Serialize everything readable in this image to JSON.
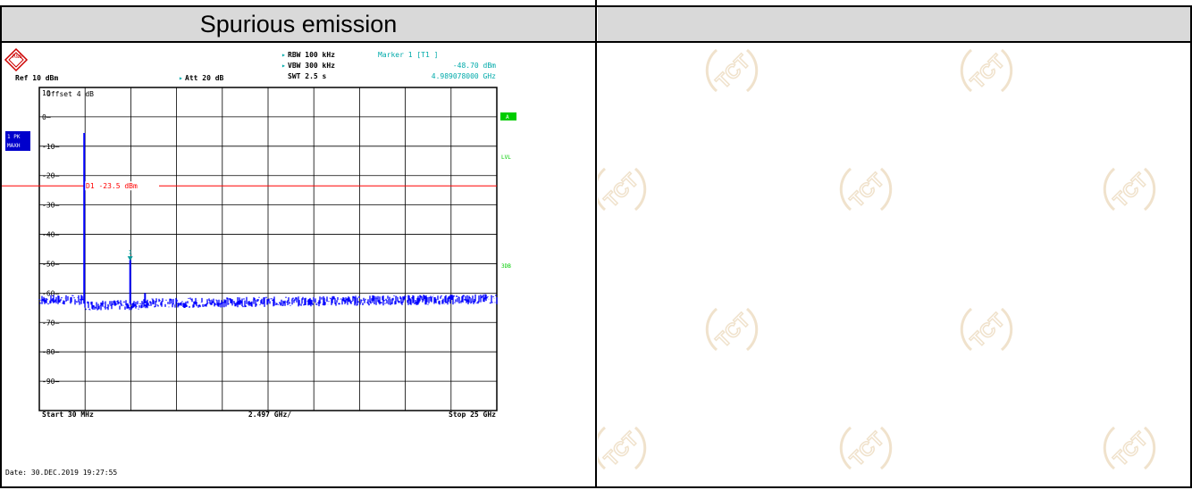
{
  "header": {
    "title": "Spurious emission"
  },
  "instrument": {
    "logo_letters": "R&S",
    "ref_label": "Ref  10 dBm",
    "att_label": "Att  20 dB",
    "rbw_label": "RBW 100 kHz",
    "vbw_label": "VBW 300 kHz",
    "swt_label": "SWT 2.5 s",
    "marker_title": "Marker 1 [T1 ]",
    "marker_level": "-48.70 dBm",
    "marker_freq": "4.989078000 GHz",
    "offset_label": "Offset  4 dB",
    "trace_badge_1": "1 PK",
    "trace_badge_2": "MAXH",
    "side_a": "A",
    "side_lvl": "LVL",
    "side_3db": "3DB",
    "start_label": "Start 30 MHz",
    "div_label": "2.497 GHz/",
    "stop_label": "Stop 25 GHz",
    "date_label": "Date: 30.DEC.2019  19:27:55",
    "marker_id": "1",
    "colors": {
      "trace": "#0000ff",
      "limit": "#ff0000",
      "marker": "#009999",
      "badge_bg": "#0000cc",
      "side_green": "#00cc00",
      "accent_text": "#00aaaa"
    }
  },
  "chart_data": {
    "type": "line",
    "title": "Spurious emission",
    "xlabel": "",
    "ylabel": "",
    "xlim_ghz": [
      0.03,
      25
    ],
    "ylim_dbm": [
      -100,
      10
    ],
    "y_ticks": [
      "10",
      "0",
      "-10",
      "-20",
      "-30",
      "-40",
      "-50",
      "-60",
      "-70",
      "-80",
      "-90"
    ],
    "x_tick_labels": [
      "Start 30 MHz",
      "2.497 GHz/",
      "Stop 25 GHz"
    ],
    "limit_line": {
      "label": "D1 -23.5 dBm",
      "value": -23.5
    },
    "marker": {
      "id": "1",
      "freq_ghz": 4.989078,
      "level_dbm": -48.7
    },
    "peaks": [
      {
        "freq_ghz": 2.48,
        "level_dbm": -5.5
      },
      {
        "freq_ghz": 4.99,
        "level_dbm": -48.7
      },
      {
        "freq_ghz": 5.8,
        "level_dbm": -60.0
      }
    ],
    "noise_floor_dbm": -63.5,
    "grid": true
  },
  "watermark": {
    "text": "TCT"
  }
}
